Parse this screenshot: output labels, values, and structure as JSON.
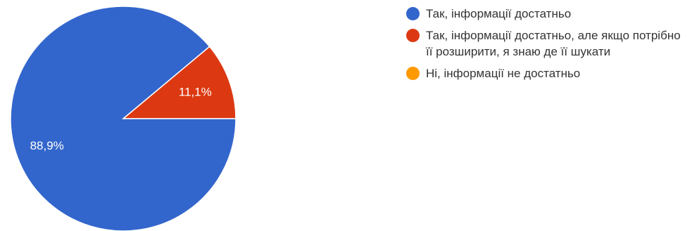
{
  "chart_data": {
    "type": "pie",
    "title": "",
    "slices": [
      {
        "label": "Так, інформації достатньо",
        "value": 88.9,
        "display": "88,9%",
        "color": "#3366cc"
      },
      {
        "label": "Так, інформації достатньо, але якщо потрібно її розширити, я знаю де її шукати",
        "value": 11.1,
        "display": "11,1%",
        "color": "#dc3912"
      },
      {
        "label": "Ні, інформації не достатньо",
        "value": 0,
        "display": "",
        "color": "#ff9900"
      }
    ],
    "legend_position": "right",
    "start_angle_deg": 0,
    "direction": "clockwise"
  }
}
